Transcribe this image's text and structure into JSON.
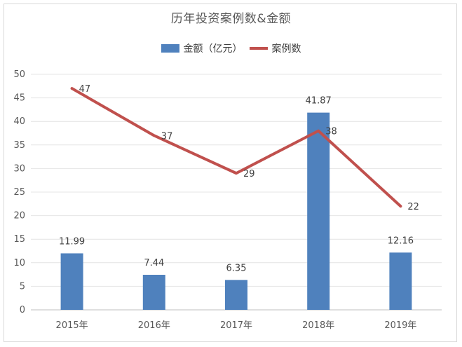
{
  "chart_data": {
    "type": "bar",
    "title": "历年投资案例数&金额",
    "categories": [
      "2015年",
      "2016年",
      "2017年",
      "2018年",
      "2019年"
    ],
    "series": [
      {
        "name": "金额（亿元）",
        "type": "bar",
        "color": "#4f81bd",
        "values": [
          11.99,
          7.44,
          6.35,
          41.87,
          12.16
        ]
      },
      {
        "name": "案例数",
        "type": "line",
        "color": "#c0504d",
        "values": [
          47,
          37,
          29,
          38,
          22
        ]
      }
    ],
    "ylim": [
      0,
      50
    ],
    "yticks": [
      0,
      5,
      10,
      15,
      20,
      25,
      30,
      35,
      40,
      45,
      50
    ],
    "grid": true,
    "legend": "top"
  }
}
